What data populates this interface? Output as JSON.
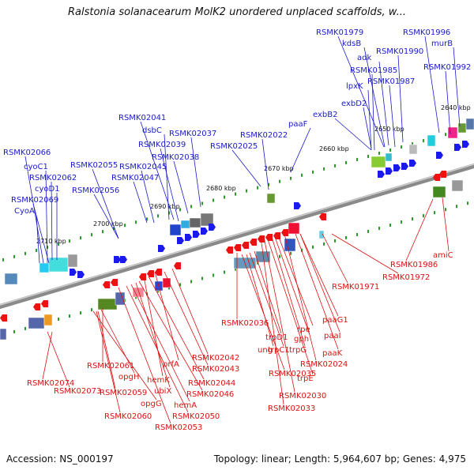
{
  "header": {
    "title": "Ralstonia solanacearum MolK2 unordered unplaced scaffolds, w..."
  },
  "footer": {
    "accession": "Accession: NS_000197",
    "topology": "Topology: linear; Length: 5,964,607 bp; Genes: 4,975"
  },
  "colors": {
    "forward_label": "#1a1acc",
    "reverse_label": "#dd1111",
    "axis": "#8a8a8a",
    "tick": "#2a9a2a",
    "forward_arrow": "#1a1aee",
    "reverse_arrow": "#ee1111"
  },
  "scale_labels": [
    "2640 kbp",
    "2650 kbp",
    "2660 kbp",
    "2670 kbp",
    "2680 kbp",
    "2690 kbp",
    "2700 kbp",
    "2710 kbp"
  ],
  "forward_genes": [
    "RSMK01979",
    "kdsB",
    "adk",
    "RSMK01990",
    "RSMK01996",
    "murB",
    "RSMK01985",
    "RSMK01992",
    "lpxK",
    "RSMK01987",
    "exbD2",
    "exbB2",
    "paaF",
    "RSMK02022",
    "RSMK02025",
    "RSMK02037",
    "RSMK02041",
    "dsbC",
    "RSMK02039",
    "RSMK02038",
    "RSMK02045",
    "RSMK02047",
    "RSMK02055",
    "RSMK02056",
    "RSMK02066",
    "cyoC1",
    "RSMK02062",
    "cyoD1",
    "RSMK02069",
    "CyoA"
  ],
  "reverse_genes": [
    "amiC",
    "RSMK01986",
    "RSMK01972",
    "RSMK01971",
    "paaG1",
    "paaI",
    "paaK",
    "RSMK02024",
    "rpe",
    "gph",
    "trpG",
    "trpE",
    "RSMK02030",
    "RSMK02033",
    "RSMK02036",
    "trpD1",
    "trpC1",
    "ung",
    "RSMK02035",
    "RSMK02042",
    "RSMK02043",
    "prfA",
    "RSMK02044",
    "hemK",
    "RSMK02046",
    "ubiX",
    "hemA",
    "RSMK02050",
    "RSMK02053",
    "RSMK02061",
    "opgH",
    "RSMK02059",
    "opgG",
    "RSMK02060",
    "RSMK02074",
    "RSMK02073"
  ]
}
